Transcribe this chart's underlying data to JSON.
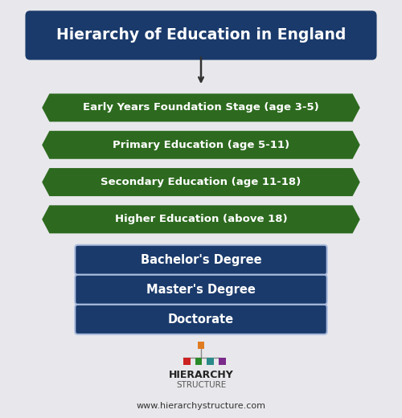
{
  "title": "Hierarchy of Education in England",
  "title_bg": "#1a3a6b",
  "title_text_color": "#ffffff",
  "background_color": "#e8e8ec",
  "arrow_color": "#333333",
  "diamond_labels": [
    "Early Years Foundation Stage (age 3-5)",
    "Primary Education (age 5-11)",
    "Secondary Education (age 11-18)",
    "Higher Education (above 18)"
  ],
  "diamond_color": "#2d6a1f",
  "diamond_text_color": "#ffffff",
  "rect_labels": [
    "Bachelor's Degree",
    "Master's Degree",
    "Doctorate"
  ],
  "rect_bg": "#1a3a6b",
  "rect_text_color": "#ffffff",
  "logo_text1": "HIERARCHY",
  "logo_text2": "STRUCTURE",
  "website": "www.hierarchystructure.com",
  "logo_colors": [
    "#e07b20",
    "#cc2222",
    "#2a8a2a",
    "#2a8a8a",
    "#7a2a8a"
  ],
  "figsize": [
    5.0,
    5.2
  ],
  "dpi": 100
}
